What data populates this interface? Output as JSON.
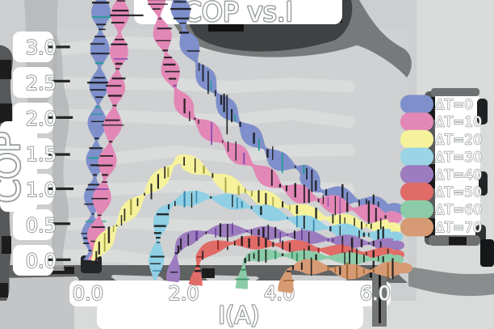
{
  "title": "COP vs.I",
  "axes": {
    "xlabel": "I(A)",
    "ylabel": "COP",
    "x_tick_labels": [
      "0.0",
      "2.0",
      "4.0",
      "6.0"
    ],
    "y_tick_labels": [
      "0.0",
      "0.5",
      "1.0",
      "1.5",
      "2.0",
      "2.5",
      "3.0"
    ]
  },
  "legend": {
    "position": "right",
    "entries": [
      {
        "label": "ΔT=0",
        "color": "#7e8fcb"
      },
      {
        "label": "ΔT=10",
        "color": "#e287b6"
      },
      {
        "label": "ΔT=20",
        "color": "#f5f29b"
      },
      {
        "label": "ΔT=30",
        "color": "#9ad4e5"
      },
      {
        "label": "ΔT=40",
        "color": "#9c7bbe"
      },
      {
        "label": "ΔT=50",
        "color": "#e16b67"
      },
      {
        "label": "ΔT=60",
        "color": "#8ccba7"
      },
      {
        "label": "ΔT=70",
        "color": "#d69b74"
      }
    ]
  },
  "style": {
    "figure_bg": "#d9dbdb",
    "plot_wash": "#cccecf",
    "plot_bg": "#cfd1d2",
    "grid_stripe": "#dadcdc",
    "spine_dark": "#565859",
    "spine_black": "#1d1d1e",
    "smudge_gray": "#b1b4b5",
    "label_fill": "#ffffff",
    "label_outline": "#989d9f",
    "box_fill": "#ffffff"
  },
  "chart_data": {
    "type": "line",
    "title": "COP vs.I",
    "xlabel": "I(A)",
    "ylabel": "COP",
    "xlim": [
      -0.7,
      6.7
    ],
    "ylim": [
      -0.1,
      3.25
    ],
    "x_ticks": [
      0,
      2,
      4,
      6
    ],
    "y_ticks": [
      0,
      0.5,
      1.0,
      1.5,
      2.0,
      2.5,
      3.0
    ],
    "grid": "horizontal",
    "legend_position": "right",
    "series": [
      {
        "name": "ΔT=0",
        "color": "#7e8fcb",
        "accent": "#1f9e93",
        "width": 12,
        "points": [
          [
            0.07,
            0
          ],
          [
            0.18,
            1.2
          ],
          [
            0.27,
            2.6
          ],
          [
            0.33,
            4.2
          ],
          [
            0.38,
            6.5
          ],
          [
            1.45,
            5.6
          ],
          [
            1.8,
            4.2
          ],
          [
            2.05,
            3.2
          ],
          [
            2.3,
            2.78
          ],
          [
            2.6,
            2.45
          ],
          [
            3.0,
            2.08
          ],
          [
            3.5,
            1.72
          ],
          [
            4.0,
            1.4
          ],
          [
            4.55,
            1.27
          ],
          [
            4.82,
            0.99
          ],
          [
            5.2,
            0.92
          ],
          [
            5.6,
            0.85
          ],
          [
            6.0,
            0.77
          ],
          [
            6.35,
            0.71
          ]
        ]
      },
      {
        "name": "ΔT=10",
        "color": "#e287b6",
        "accent": "#8a4fb0",
        "width": 11.5,
        "points": [
          [
            0.13,
            0
          ],
          [
            0.33,
            0.9
          ],
          [
            0.55,
            1.9
          ],
          [
            0.68,
            2.9
          ],
          [
            0.75,
            4.8
          ],
          [
            1.3,
            4.5
          ],
          [
            1.5,
            3.5
          ],
          [
            1.65,
            2.95
          ],
          [
            1.85,
            2.42
          ],
          [
            2.15,
            2.05
          ],
          [
            2.5,
            1.86
          ],
          [
            3.0,
            1.58
          ],
          [
            3.5,
            1.32
          ],
          [
            4.0,
            1.06
          ],
          [
            4.5,
            0.92
          ],
          [
            5.0,
            0.82
          ],
          [
            5.5,
            0.73
          ],
          [
            6.0,
            0.65
          ],
          [
            6.3,
            0.6
          ]
        ]
      },
      {
        "name": "ΔT=20",
        "color": "#f5f29b",
        "accent": "#9a9a3a",
        "width": 10.5,
        "points": [
          [
            0.12,
            0
          ],
          [
            0.5,
            0.38
          ],
          [
            1.0,
            0.78
          ],
          [
            1.5,
            1.12
          ],
          [
            1.95,
            1.43
          ],
          [
            2.5,
            1.24
          ],
          [
            3.0,
            1.06
          ],
          [
            3.5,
            0.92
          ],
          [
            4.0,
            0.8
          ],
          [
            4.5,
            0.68
          ],
          [
            5.0,
            0.59
          ],
          [
            5.5,
            0.52
          ],
          [
            6.0,
            0.47
          ],
          [
            6.3,
            0.45
          ]
        ]
      },
      {
        "name": "ΔT=30",
        "color": "#8fd0e4",
        "accent": "#2f7fa8",
        "width": 9.5,
        "points": [
          [
            1.43,
            -0.28
          ],
          [
            1.5,
            0.35
          ],
          [
            1.6,
            0.68
          ],
          [
            1.8,
            0.8
          ],
          [
            2.1,
            0.86
          ],
          [
            2.45,
            0.9
          ],
          [
            3.0,
            0.83
          ],
          [
            3.5,
            0.73
          ],
          [
            4.0,
            0.63
          ],
          [
            4.5,
            0.54
          ],
          [
            5.0,
            0.46
          ],
          [
            5.5,
            0.4
          ],
          [
            6.0,
            0.35
          ],
          [
            6.35,
            0.33
          ]
        ]
      },
      {
        "name": "ΔT=40",
        "color": "#9c7bbe",
        "accent": "#5f3390",
        "width": 8.5,
        "points": [
          [
            1.8,
            -0.3
          ],
          [
            1.87,
            0.1
          ],
          [
            2.0,
            0.26
          ],
          [
            2.3,
            0.36
          ],
          [
            2.7,
            0.42
          ],
          [
            3.2,
            0.42
          ],
          [
            3.7,
            0.39
          ],
          [
            4.2,
            0.36
          ],
          [
            4.7,
            0.32
          ],
          [
            5.2,
            0.28
          ],
          [
            5.7,
            0.25
          ],
          [
            6.1,
            0.23
          ],
          [
            6.4,
            0.21
          ]
        ]
      },
      {
        "name": "ΔT=50",
        "color": "#e16b67",
        "accent": "#a02a2a",
        "width": 8.5,
        "points": [
          [
            2.28,
            -0.35
          ],
          [
            2.35,
            0.05
          ],
          [
            2.55,
            0.16
          ],
          [
            2.9,
            0.23
          ],
          [
            3.3,
            0.26
          ],
          [
            3.7,
            0.24
          ],
          [
            4.1,
            0.21
          ],
          [
            4.5,
            0.18
          ],
          [
            5.0,
            0.14
          ],
          [
            5.5,
            0.11
          ],
          [
            6.0,
            0.09
          ],
          [
            6.4,
            0.08
          ]
        ]
      },
      {
        "name": "ΔT=60",
        "color": "#8ccba7",
        "accent": "#2f8f5f",
        "width": 7.5,
        "points": [
          [
            3.24,
            -0.4
          ],
          [
            3.3,
            0.0
          ],
          [
            3.45,
            0.06
          ],
          [
            3.8,
            0.08
          ],
          [
            4.2,
            0.07
          ],
          [
            4.6,
            0.055
          ],
          [
            5.0,
            0.04
          ],
          [
            5.5,
            0.025
          ],
          [
            6.0,
            0.015
          ],
          [
            6.4,
            0.01
          ]
        ]
      },
      {
        "name": "ΔT=70",
        "color": "#d69b74",
        "accent": "#9a5f28",
        "width": 9.5,
        "points": [
          [
            4.15,
            -0.45
          ],
          [
            4.22,
            -0.12
          ],
          [
            4.5,
            -0.08
          ],
          [
            5.0,
            -0.11
          ],
          [
            5.4,
            -0.16
          ],
          [
            5.8,
            -0.16
          ],
          [
            6.2,
            -0.13
          ],
          [
            6.55,
            -0.11
          ]
        ]
      }
    ]
  }
}
